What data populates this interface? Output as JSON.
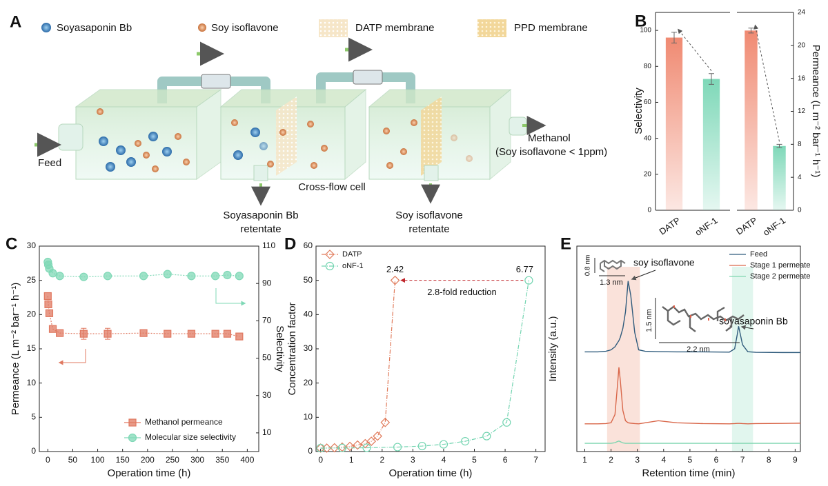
{
  "panel_labels": [
    "A",
    "B",
    "C",
    "D",
    "E"
  ],
  "diagram": {
    "legend": [
      "Soyasaponin Bb",
      "Soy isoflavone",
      "DATP membrane",
      "PPD membrane"
    ],
    "feed": "Feed",
    "outlet": [
      "Methanol",
      "(Soy isoflavone < 1ppm)"
    ],
    "cell": "Cross-flow cell",
    "retentate_1": [
      "Soyasaponin Bb",
      "retentate"
    ],
    "retentate_2": [
      "Soy isoflavone",
      "retentate"
    ]
  },
  "chart_data": [
    {
      "type": "bar",
      "categories": [
        "DATP",
        "oNF-1"
      ],
      "values": [
        96,
        73
      ],
      "errors": [
        3,
        3
      ],
      "colors": [
        "#f08a72",
        "#7ed8b8"
      ],
      "ylabel": "Selectivity",
      "ylim": [
        0,
        110
      ],
      "yticks": [
        0,
        20,
        40,
        60,
        80,
        100
      ]
    },
    {
      "type": "bar",
      "categories": [
        "DATP",
        "oNF-1"
      ],
      "values": [
        21.8,
        7.8
      ],
      "errors": [
        0.3,
        0.2
      ],
      "colors": [
        "#f08a72",
        "#7ed8b8"
      ],
      "y2label": "Permeance (L m⁻² bar⁻¹ h⁻¹)",
      "y2lim": [
        0,
        24
      ],
      "y2ticks": [
        0,
        4,
        8,
        12,
        16,
        20,
        24
      ]
    },
    {
      "type": "line",
      "xlabel": "Operation time (h)",
      "ylabel": "Permeance (L m⁻² bar⁻¹ h⁻¹)",
      "y2label": "Selectivity",
      "xlim": [
        -17,
        423
      ],
      "xticks": [
        0,
        50,
        100,
        150,
        200,
        250,
        300,
        350,
        400
      ],
      "ylim": [
        0,
        30
      ],
      "yticks": [
        0,
        5,
        10,
        15,
        20,
        25,
        30
      ],
      "y2lim": [
        0,
        110
      ],
      "y2ticks": [
        10,
        30,
        50,
        70,
        90,
        110
      ],
      "legend": "lower right",
      "x": [
        0,
        1,
        3,
        10,
        24,
        72,
        120,
        192,
        240,
        288,
        336,
        360,
        384
      ],
      "series": [
        {
          "name": "Methanol permeance",
          "color": "#e07860",
          "marker": "square",
          "hollow": false,
          "values": [
            22.7,
            21.5,
            20.2,
            17.9,
            17.3,
            17.2,
            17.2,
            17.3,
            17.2,
            17.2,
            17.2,
            17.2,
            16.8
          ],
          "errors": [
            null,
            null,
            null,
            null,
            null,
            0.8,
            0.8,
            null,
            null,
            null,
            null,
            null,
            null
          ]
        },
        {
          "name": "Molecular size selectivity",
          "color": "#7fd8b6",
          "marker": "circle",
          "hollow": false,
          "axis": "y2",
          "values": [
            101.5,
            100,
            98,
            95.5,
            94,
            93.5,
            94,
            94,
            95,
            94,
            94,
            94.5,
            94
          ]
        }
      ]
    },
    {
      "type": "line",
      "xlabel": "Operation time (h)",
      "ylabel": "Concentration factor",
      "xlim": [
        -0.15,
        7.3
      ],
      "xticks": [
        0,
        1,
        2,
        3,
        4,
        5,
        6,
        7
      ],
      "ylim": [
        0,
        60
      ],
      "yticks": [
        0,
        10,
        20,
        30,
        40,
        50,
        60
      ],
      "legend": "upper left",
      "annotations": [
        "2.42",
        "6.77",
        "2.8-fold reduction"
      ],
      "series": [
        {
          "name": "DATP",
          "color": "#e07a5a",
          "marker": "diamond",
          "hollow": true,
          "x": [
            0,
            0.2,
            0.45,
            0.7,
            0.95,
            1.2,
            1.45,
            1.65,
            1.85,
            2.1,
            2.42
          ],
          "values": [
            1,
            1,
            1.1,
            1.3,
            1.5,
            1.9,
            2.3,
            3,
            4.5,
            8.5,
            50
          ]
        },
        {
          "name": "oNF-1",
          "color": "#72d4b0",
          "marker": "circle",
          "hollow": true,
          "x": [
            0,
            0.7,
            1.5,
            2.5,
            3.3,
            4.0,
            4.7,
            5.4,
            6.05,
            6.77
          ],
          "values": [
            1,
            1.05,
            1.1,
            1.3,
            1.6,
            2.1,
            3.0,
            4.5,
            8.5,
            50
          ]
        }
      ]
    },
    {
      "type": "line",
      "xlabel": "Retention time (min)",
      "ylabel": "Intensity (a.u.)",
      "xlim": [
        0.7,
        9.2
      ],
      "xticks": [
        1,
        2,
        3,
        4,
        5,
        6,
        7,
        8,
        9
      ],
      "ylim": [
        0,
        100
      ],
      "legend": "upper right",
      "highlight_ranges": [
        [
          1.85,
          3.1
        ],
        [
          6.6,
          7.4
        ]
      ],
      "highlight_colors": [
        "#f6cfc2",
        "#cdf0e2"
      ],
      "annotations": [
        "soy isoflavone",
        "soyasaponin Bb",
        "0.8 nm",
        "1.3 nm",
        "1.5 nm",
        "2.2 nm"
      ],
      "x": [
        1,
        1.5,
        1.8,
        2.0,
        2.15,
        2.25,
        2.3,
        2.35,
        2.45,
        2.55,
        2.65,
        2.75,
        2.9,
        3.05,
        3.3,
        3.8,
        4.5,
        5.5,
        6.5,
        6.7,
        6.8,
        6.85,
        6.9,
        7.0,
        7.2,
        7.5,
        8.5,
        9.2
      ],
      "series": [
        {
          "name": "Feed",
          "color": "#2f5b7c",
          "values": [
            48.5,
            48.5,
            48.8,
            49.5,
            51,
            53,
            54,
            55.5,
            60,
            68,
            83,
            76,
            58,
            49.5,
            48.8,
            48.6,
            48.5,
            48.5,
            48.4,
            50,
            57,
            61,
            58,
            52,
            48.6,
            48.3,
            48.2,
            48.2
          ]
        },
        {
          "name": "Stage 1 permeate",
          "color": "#d9674a",
          "values": [
            13.5,
            13.5,
            13.6,
            14,
            18,
            33,
            41,
            35,
            20,
            15,
            14,
            13.8,
            13.6,
            13.5,
            14,
            15,
            14,
            13.6,
            13.5,
            13.6,
            13.7,
            13.7,
            13.7,
            13.6,
            13.5,
            13.6,
            13.7,
            13.8
          ]
        },
        {
          "name": "Stage 2 permeate",
          "color": "#7fd6b0",
          "values": [
            4,
            4,
            4,
            4,
            4.3,
            4.9,
            5.1,
            4.8,
            4.2,
            4,
            4,
            4,
            4,
            4,
            4,
            4,
            4,
            4,
            4,
            4,
            4,
            4,
            4,
            4,
            4,
            4,
            4,
            4
          ]
        }
      ]
    }
  ]
}
